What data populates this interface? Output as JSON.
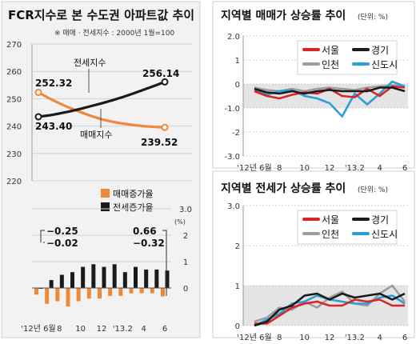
{
  "left_panel": {
    "title": "FCR지수로 본 수도권 아파트값 추이",
    "note": "※ 매매 · 전세지수 : 2000년 1월=100"
  },
  "right_top": {
    "title": "지역별 매매가 상승률 추이",
    "unit": "(단위: %)"
  },
  "right_bottom": {
    "title": "지역별 전세가 상승률 추이",
    "unit": "(단위: %)"
  },
  "colors": {
    "sale_index": "#f0883a",
    "rent_index": "#1a1a1a",
    "seoul": "#d9252a",
    "gyeonggi": "#1a1a1a",
    "incheon": "#9e9e9e",
    "newtown": "#2a9fd8",
    "panel_bg": "#f2f2f2",
    "shade_bg": "#e4e4e4"
  },
  "chart_data": [
    {
      "id": "index",
      "type": "line",
      "x": [
        "'12년 6월",
        "7",
        "8",
        "9",
        "10",
        "11",
        "12",
        "'13.1",
        "'13.2",
        "3",
        "4",
        "5",
        "6"
      ],
      "ylim": [
        220,
        270
      ],
      "yticks": [
        "270",
        "260",
        "250",
        "240",
        "230",
        "220"
      ],
      "series": [
        {
          "name": "매매지수",
          "values": [
            252.32,
            250.2,
            248.3,
            246.6,
            245.1,
            243.7,
            242.5,
            241.6,
            240.9,
            240.4,
            240.0,
            239.7,
            239.52
          ]
        },
        {
          "name": "전세지수",
          "values": [
            243.4,
            243.9,
            244.6,
            245.4,
            246.3,
            247.3,
            248.3,
            249.4,
            250.6,
            251.9,
            253.3,
            254.7,
            256.14
          ]
        }
      ],
      "labels": {
        "sale_start": "252.32",
        "sale_end": "239.52",
        "rent_start": "243.40",
        "rent_end": "256.14"
      }
    },
    {
      "id": "growth_bars",
      "type": "bar",
      "x": [
        "'12년 6월",
        "7",
        "8",
        "9",
        "10",
        "11",
        "12",
        "'13.1",
        "'13.2",
        "3",
        "4",
        "5",
        "6"
      ],
      "xticks": [
        "'12년 6월",
        "8",
        "10",
        "12",
        "'13.2",
        "4",
        "6"
      ],
      "ylim": [
        -2.5,
        3.0
      ],
      "yticks": [
        "3.0",
        "2",
        "1",
        "0"
      ],
      "y_unit": "(%)",
      "series": [
        {
          "name": "매매증가율",
          "values": [
            -0.25,
            -0.6,
            -0.5,
            -0.7,
            -0.5,
            -0.4,
            -0.4,
            -0.3,
            -0.3,
            -0.2,
            -0.2,
            -0.2,
            -0.32
          ]
        },
        {
          "name": "전세증가율",
          "values": [
            -0.02,
            0.3,
            0.5,
            0.6,
            0.8,
            0.9,
            0.8,
            0.9,
            0.6,
            0.8,
            0.7,
            0.7,
            0.66
          ]
        }
      ],
      "annotations": {
        "sale_start": "−0.25",
        "rent_start": "−0.02",
        "rent_end": "0.66",
        "sale_end": "−0.32"
      }
    },
    {
      "id": "sale_rate",
      "type": "line",
      "x": [
        "'12년 6월",
        "7",
        "8",
        "9",
        "10",
        "11",
        "12",
        "'13.1",
        "'13.2",
        "3",
        "4",
        "5",
        "6"
      ],
      "xticks": [
        "'12년 6월",
        "8",
        "10",
        "12",
        "'13.2",
        "4",
        "6"
      ],
      "ylim": [
        -3.0,
        2.0
      ],
      "yticks": [
        "2.0",
        "1",
        "0",
        "-1.0",
        "-2",
        "-3.0"
      ],
      "series": [
        {
          "name": "서울",
          "values": [
            -0.3,
            -0.5,
            -0.6,
            -0.45,
            -0.35,
            -0.4,
            -0.2,
            -0.5,
            -0.55,
            -0.2,
            -0.5,
            -0.1,
            -0.15
          ]
        },
        {
          "name": "경기",
          "values": [
            -0.2,
            -0.35,
            -0.4,
            -0.3,
            -0.4,
            -0.3,
            -0.25,
            -0.3,
            -0.3,
            -0.3,
            -0.15,
            -0.15,
            -0.3
          ]
        },
        {
          "name": "인천",
          "values": [
            -0.15,
            -0.25,
            -0.3,
            -0.2,
            -0.3,
            -0.2,
            -0.15,
            -0.2,
            -0.25,
            -0.15,
            -0.1,
            -0.05,
            -0.1
          ]
        },
        {
          "name": "신도시",
          "values": [
            -0.2,
            -0.45,
            -0.3,
            -0.25,
            -0.5,
            -0.6,
            -0.8,
            -1.35,
            -0.4,
            -0.85,
            -0.4,
            0.1,
            -0.1
          ]
        }
      ],
      "legend": "top-left"
    },
    {
      "id": "rent_rate",
      "type": "line",
      "x": [
        "'12년 6월",
        "7",
        "8",
        "9",
        "10",
        "11",
        "12",
        "'13.1",
        "'13.2",
        "3",
        "4",
        "5",
        "6"
      ],
      "xticks": [
        "'12년 6월",
        "8",
        "10",
        "12",
        "'13.2",
        "4",
        "6"
      ],
      "ylim": [
        0.0,
        3.0
      ],
      "yticks": [
        "3.0",
        "2",
        "1",
        "0"
      ],
      "series": [
        {
          "name": "서울",
          "values": [
            0.05,
            0.05,
            0.25,
            0.45,
            0.55,
            0.6,
            0.5,
            0.5,
            0.65,
            0.6,
            0.65,
            0.5,
            0.5
          ]
        },
        {
          "name": "경기",
          "values": [
            0.0,
            0.1,
            0.4,
            0.5,
            0.75,
            0.8,
            0.65,
            0.8,
            0.7,
            0.75,
            0.8,
            0.65,
            0.8
          ]
        },
        {
          "name": "인천",
          "values": [
            0.1,
            0.2,
            0.45,
            0.4,
            0.6,
            0.45,
            0.7,
            0.85,
            0.55,
            0.5,
            0.8,
            1.0,
            0.6
          ]
        },
        {
          "name": "신도시",
          "values": [
            0.0,
            0.15,
            0.3,
            0.55,
            0.6,
            0.75,
            0.65,
            0.6,
            0.55,
            0.55,
            0.7,
            0.75,
            0.55
          ]
        }
      ],
      "legend": "top-left"
    }
  ]
}
